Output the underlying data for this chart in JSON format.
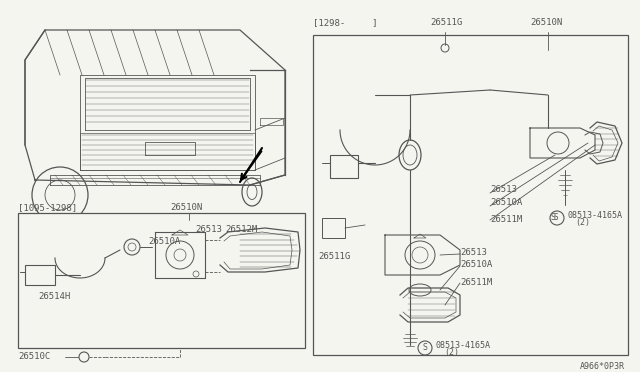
{
  "bg_color": "#f5f5f0",
  "line_color": "#555555",
  "diagram_code": "A966*0P3R",
  "left_date_range": "[1095-1298]",
  "right_date_label": "[1298-     ]",
  "label_26510N_top": "26510N",
  "label_26513_lbox": "26513",
  "label_26510A_lbox": "26510A",
  "label_26512M_lbox": "26512M",
  "label_26514H": "26514H",
  "label_26510C": "26510C",
  "label_26511G_top": "26511G",
  "label_26510N_right": "26510N",
  "label_26513_upper": "26513",
  "label_26510A_upper": "26510A",
  "label_26511M_upper": "26511M",
  "label_26511G_lower": "26511G",
  "label_26513_lower": "26513",
  "label_26510A_lower": "26510A",
  "label_26511M_lower": "26511M",
  "label_screw_upper": "08513-4165A",
  "label_screw_upper2": "(2)",
  "label_screw_lower": "08513-4165A",
  "label_screw_lower2": "(2)"
}
